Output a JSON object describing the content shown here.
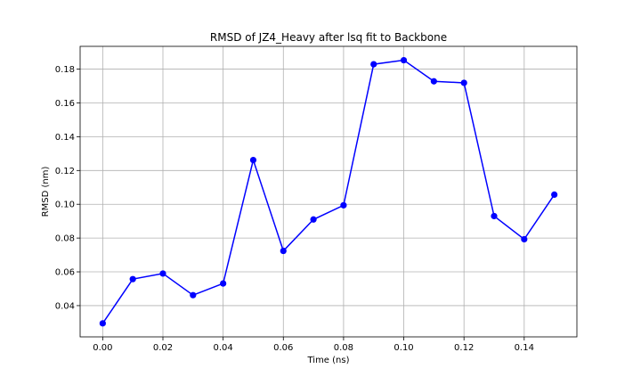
{
  "chart_data": {
    "type": "line",
    "title": "RMSD of JZ4_Heavy after lsq fit to Backbone",
    "xlabel": "Time (ns)",
    "ylabel": "RMSD (nm)",
    "xlim": [
      -0.0075,
      0.1575
    ],
    "ylim": [
      0.0215,
      0.1935
    ],
    "grid": true,
    "x_ticks": [
      0.0,
      0.02,
      0.04,
      0.06,
      0.08,
      0.1,
      0.12,
      0.14
    ],
    "x_tick_labels": [
      "0.00",
      "0.02",
      "0.04",
      "0.06",
      "0.08",
      "0.10",
      "0.12",
      "0.14"
    ],
    "y_ticks": [
      0.04,
      0.06,
      0.08,
      0.1,
      0.12,
      0.14,
      0.16,
      0.18
    ],
    "y_tick_labels": [
      "0.04",
      "0.06",
      "0.08",
      "0.10",
      "0.12",
      "0.14",
      "0.16",
      "0.18"
    ],
    "series": [
      {
        "color": "#0000ff",
        "marker": "circle",
        "x": [
          0.0,
          0.01,
          0.02,
          0.03,
          0.04,
          0.05,
          0.06,
          0.07,
          0.08,
          0.09,
          0.1,
          0.11,
          0.12,
          0.13,
          0.14,
          0.15
        ],
        "y": [
          0.0295,
          0.0557,
          0.059,
          0.0462,
          0.0531,
          0.1262,
          0.0724,
          0.091,
          0.0994,
          0.1829,
          0.1853,
          0.1728,
          0.1719,
          0.093,
          0.0793,
          0.1057
        ]
      }
    ]
  }
}
